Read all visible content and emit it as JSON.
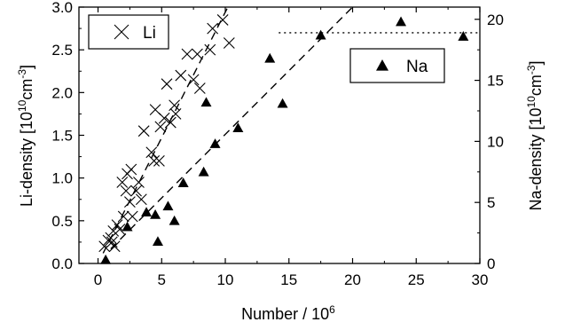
{
  "chart_data": {
    "type": "scatter",
    "xlabel": {
      "base": "Number / 10",
      "sup": "6"
    },
    "ylabel_left": {
      "pre": "Li-density [10",
      "sup1": "10",
      "mid": "cm",
      "sup2": "-3",
      "post": "]"
    },
    "ylabel_right": {
      "pre": "Na-density [10",
      "sup1": "10",
      "mid": "cm",
      "sup2": "-3",
      "post": "]"
    },
    "xlim": [
      -1.5,
      30
    ],
    "ylim_left": [
      0,
      3.0
    ],
    "ylim_right": [
      0,
      21
    ],
    "x_ticks": [
      0,
      5,
      10,
      15,
      20,
      25,
      30
    ],
    "y_left_ticks": [
      "0.0",
      "0.5",
      "1.0",
      "1.5",
      "2.0",
      "2.5",
      "3.0"
    ],
    "y_right_ticks": [
      0,
      5,
      10,
      15,
      20
    ],
    "grid": false,
    "legend": [
      {
        "name": "Li",
        "marker": "x",
        "axis": "left",
        "placement": "top-left"
      },
      {
        "name": "Na",
        "marker": "triangle",
        "axis": "right",
        "placement": "top-right"
      }
    ],
    "series": [
      {
        "name": "Li",
        "axis": "left",
        "marker": "x",
        "points": [
          [
            0.5,
            0.2
          ],
          [
            0.8,
            0.27
          ],
          [
            1.0,
            0.3
          ],
          [
            1.1,
            0.25
          ],
          [
            1.2,
            0.38
          ],
          [
            1.3,
            0.2
          ],
          [
            1.5,
            0.45
          ],
          [
            1.7,
            0.4
          ],
          [
            2.0,
            0.55
          ],
          [
            1.9,
            0.95
          ],
          [
            2.2,
            0.85
          ],
          [
            2.3,
            1.05
          ],
          [
            2.5,
            0.72
          ],
          [
            2.6,
            1.1
          ],
          [
            2.7,
            0.55
          ],
          [
            3.0,
            0.85
          ],
          [
            3.2,
            0.95
          ],
          [
            3.4,
            0.75
          ],
          [
            3.6,
            1.55
          ],
          [
            4.2,
            1.3
          ],
          [
            4.4,
            1.2
          ],
          [
            4.5,
            1.8
          ],
          [
            4.8,
            1.2
          ],
          [
            4.9,
            1.6
          ],
          [
            5.2,
            1.7
          ],
          [
            5.4,
            2.1
          ],
          [
            5.7,
            1.65
          ],
          [
            6.0,
            1.85
          ],
          [
            6.1,
            1.75
          ],
          [
            6.5,
            2.2
          ],
          [
            7.0,
            2.45
          ],
          [
            7.5,
            2.15
          ],
          [
            7.8,
            2.45
          ],
          [
            8.0,
            2.05
          ],
          [
            8.8,
            2.5
          ],
          [
            9.0,
            2.75
          ],
          [
            9.8,
            2.85
          ],
          [
            10.3,
            2.58
          ]
        ]
      },
      {
        "name": "Na",
        "axis": "right",
        "marker": "triangle",
        "points": [
          [
            0.6,
            0.3
          ],
          [
            2.3,
            3.0
          ],
          [
            3.8,
            4.2
          ],
          [
            4.5,
            4.0
          ],
          [
            4.7,
            1.8
          ],
          [
            5.5,
            4.7
          ],
          [
            6.0,
            3.5
          ],
          [
            6.7,
            6.6
          ],
          [
            8.3,
            7.5
          ],
          [
            8.5,
            13.2
          ],
          [
            9.2,
            9.8
          ],
          [
            11.0,
            11.1
          ],
          [
            13.5,
            16.8
          ],
          [
            14.5,
            13.1
          ],
          [
            17.5,
            18.7
          ],
          [
            23.8,
            19.8
          ],
          [
            28.7,
            18.6
          ]
        ]
      }
    ],
    "fits": [
      {
        "series": "Li",
        "axis": "left",
        "style": "dashed",
        "from": [
          0.4,
          0.12
        ],
        "to": [
          10.2,
          3.0
        ]
      },
      {
        "series": "Na",
        "axis": "right",
        "style": "dashed",
        "from": [
          1.0,
          1.2
        ],
        "to": [
          20.0,
          21.0
        ]
      },
      {
        "series": "Na",
        "axis": "right",
        "style": "dotted",
        "from": [
          14.2,
          18.9
        ],
        "to": [
          30,
          18.9
        ]
      }
    ]
  }
}
